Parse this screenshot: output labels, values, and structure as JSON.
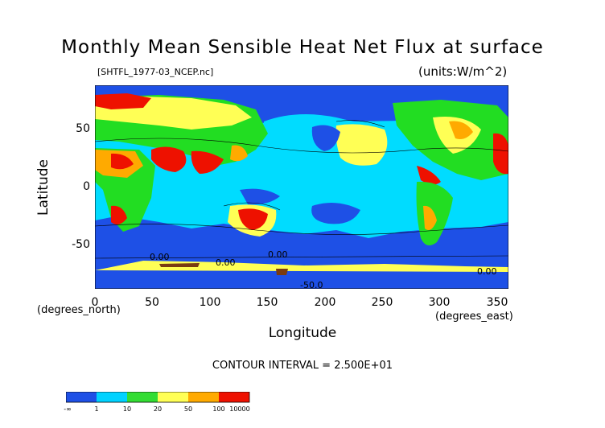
{
  "title": "Monthly Mean Sensible Heat Net Flux at surface",
  "subtitle_left": "[SHTFL_1977-03_NCEP.nc]",
  "subtitle_right": "(units:W/m^2)",
  "axes": {
    "x_label": "Longitude",
    "y_label": "Latitude",
    "x_units": "(degrees_east)",
    "y_units": "(degrees_north)",
    "x_ticks": [
      "0",
      "50",
      "100",
      "150",
      "200",
      "250",
      "300",
      "350"
    ],
    "y_ticks": [
      "50",
      "0",
      "-50"
    ],
    "x_range": [
      0,
      360
    ],
    "y_range": [
      -90,
      90
    ]
  },
  "contour_interval": "CONTOUR INTERVAL = 2.500E+01",
  "contour_labels": [
    "0.00",
    "0.00",
    "0.00",
    "0.00",
    "-50.0"
  ],
  "colorbar": {
    "labels": [
      "-∞",
      "1",
      "10",
      "20",
      "50",
      "100",
      "10000"
    ],
    "colors": [
      "#1e50e6",
      "#00d2ff",
      "#33dd33",
      "#ffff55",
      "#ffaa00",
      "#ee1100"
    ]
  },
  "palette": {
    "ocean_low": "#1e50e6",
    "cyan": "#00dcff",
    "green": "#22dd22",
    "yellow": "#ffff55",
    "orange": "#ffaa00",
    "red": "#ee1100",
    "brown": "#7a3b10"
  }
}
